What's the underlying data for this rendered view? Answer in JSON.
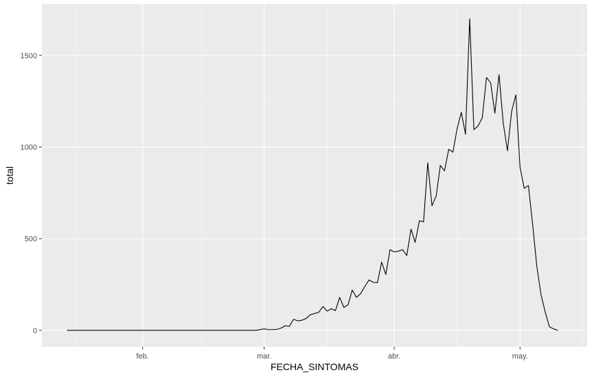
{
  "chart_data": {
    "type": "line",
    "xlabel": "FECHA_SINTOMAS",
    "ylabel": "total",
    "x_axis": {
      "type": "date",
      "range": [
        "2020-01-08",
        "2020-05-17"
      ],
      "ticks": [
        {
          "date": "2020-02-01",
          "label": "feb."
        },
        {
          "date": "2020-03-01",
          "label": "mar."
        },
        {
          "date": "2020-04-01",
          "label": "abr."
        },
        {
          "date": "2020-05-01",
          "label": "may."
        }
      ],
      "minor_grid_dates": [
        "2020-01-16",
        "2020-02-15",
        "2020-03-16",
        "2020-04-16",
        "2020-05-16"
      ]
    },
    "y_axis": {
      "range": [
        -90,
        1780
      ],
      "ticks": [
        0,
        500,
        1000,
        1500
      ],
      "minor_grid": [
        250,
        750,
        1250,
        1750
      ]
    },
    "grid": true,
    "colors": {
      "panel_background": "#ebebeb",
      "grid_major": "#ffffff",
      "line": "#000000",
      "tick_text": "#4d4d4d",
      "tick_mark": "#333333"
    },
    "series": [
      {
        "x": [
          "2020-01-14",
          "2020-02-28",
          "2020-03-01",
          "2020-03-02",
          "2020-03-03",
          "2020-03-04",
          "2020-03-05",
          "2020-03-06",
          "2020-03-07",
          "2020-03-08",
          "2020-03-09",
          "2020-03-10",
          "2020-03-11",
          "2020-03-12",
          "2020-03-13",
          "2020-03-14",
          "2020-03-15",
          "2020-03-16",
          "2020-03-17",
          "2020-03-18",
          "2020-03-19",
          "2020-03-20",
          "2020-03-21",
          "2020-03-22",
          "2020-03-23",
          "2020-03-24",
          "2020-03-25",
          "2020-03-26",
          "2020-03-27",
          "2020-03-28",
          "2020-03-29",
          "2020-03-30",
          "2020-03-31",
          "2020-04-01",
          "2020-04-02",
          "2020-04-03",
          "2020-04-04",
          "2020-04-05",
          "2020-04-06",
          "2020-04-07",
          "2020-04-08",
          "2020-04-09",
          "2020-04-10",
          "2020-04-11",
          "2020-04-12",
          "2020-04-13",
          "2020-04-14",
          "2020-04-15",
          "2020-04-16",
          "2020-04-17",
          "2020-04-18",
          "2020-04-19",
          "2020-04-20",
          "2020-04-21",
          "2020-04-22",
          "2020-04-23",
          "2020-04-24",
          "2020-04-25",
          "2020-04-26",
          "2020-04-27",
          "2020-04-28",
          "2020-04-29",
          "2020-04-30",
          "2020-05-01",
          "2020-05-02",
          "2020-05-03",
          "2020-05-04",
          "2020-05-05",
          "2020-05-06",
          "2020-05-07",
          "2020-05-08",
          "2020-05-09",
          "2020-05-10"
        ],
        "y": [
          0,
          0,
          8,
          4,
          4,
          5,
          12,
          25,
          22,
          60,
          52,
          55,
          65,
          85,
          92,
          98,
          130,
          105,
          118,
          108,
          180,
          125,
          140,
          220,
          180,
          200,
          240,
          275,
          262,
          260,
          372,
          305,
          440,
          428,
          432,
          440,
          408,
          552,
          480,
          598,
          592,
          915,
          680,
          732,
          900,
          870,
          988,
          972,
          1100,
          1190,
          1070,
          1700,
          1095,
          1115,
          1160,
          1380,
          1350,
          1185,
          1395,
          1130,
          980,
          1195,
          1285,
          890,
          775,
          790,
          580,
          350,
          195,
          100,
          20,
          8,
          0
        ]
      }
    ]
  }
}
